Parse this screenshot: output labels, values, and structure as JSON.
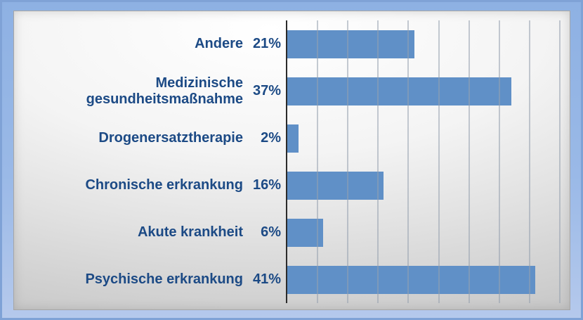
{
  "chart_data": {
    "type": "bar",
    "orientation": "horizontal",
    "categories": [
      "Andere",
      "Medizinische gesundheitsmaßnahme",
      "Drogenersatztherapie",
      "Chronische erkrankung",
      "Akute krankheit",
      "Psychische erkrankung"
    ],
    "values": [
      21,
      37,
      2,
      16,
      6,
      41
    ],
    "value_labels": [
      "21%",
      "37%",
      "2%",
      "16%",
      "6%",
      "41%"
    ],
    "xlabel": "",
    "ylabel": "",
    "xlim": [
      0,
      45
    ],
    "grid_step": 5,
    "grid": "on",
    "legend": "none",
    "value_labels_position": "left-of-axis",
    "colors": {
      "bar": "#6090c7",
      "label_text": "#1c4a85",
      "axis_line": "#2b2b2b",
      "gridline": "rgba(150,160,175,0.55)",
      "panel_center": "#ffffff",
      "panel_edge": "#c2c2c2",
      "frame_fill_top": "#8eb1e3",
      "frame_fill_bottom": "#b5c9ec",
      "frame_border": "#7fa2d6"
    }
  }
}
